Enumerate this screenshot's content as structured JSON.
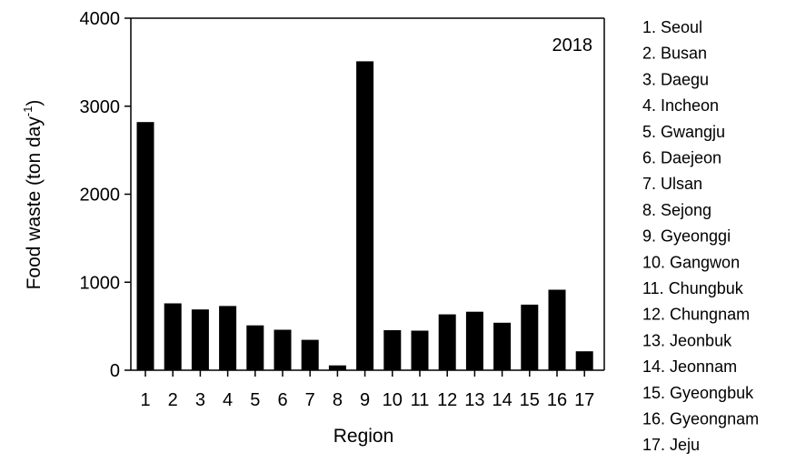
{
  "chart_data": {
    "type": "bar",
    "title": "",
    "annotation": "2018",
    "xlabel": "Region",
    "ylabel": {
      "text": "Food waste (ton day",
      "superscript": "-1",
      "suffix": ")"
    },
    "ylim": [
      0,
      4000
    ],
    "yticks": [
      0,
      1000,
      2000,
      3000,
      4000
    ],
    "grid": false,
    "categories": [
      "1",
      "2",
      "3",
      "4",
      "5",
      "6",
      "7",
      "8",
      "9",
      "10",
      "11",
      "12",
      "13",
      "14",
      "15",
      "16",
      "17"
    ],
    "values": [
      2820,
      760,
      690,
      730,
      510,
      460,
      345,
      55,
      3510,
      455,
      450,
      635,
      665,
      540,
      745,
      915,
      215
    ],
    "bar_color": "#000000",
    "legend_position": "right",
    "legend": [
      "1. Seoul",
      "2. Busan",
      "3. Daegu",
      "4. Incheon",
      "5. Gwangju",
      "6. Daejeon",
      "7. Ulsan",
      "8. Sejong",
      "9. Gyeonggi",
      "10. Gangwon",
      "11. Chungbuk",
      "12. Chungnam",
      "13. Jeonbuk",
      "14. Jeonnam",
      "15. Gyeongbuk",
      "16. Gyeongnam",
      "17. Jeju"
    ]
  }
}
